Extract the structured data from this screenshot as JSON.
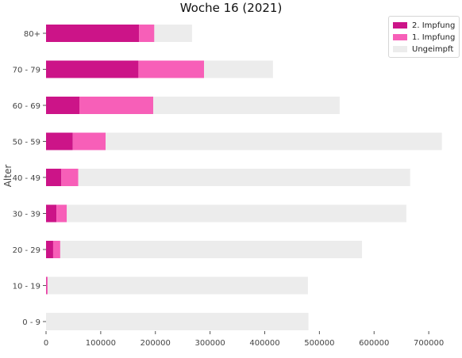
{
  "chart_data": {
    "type": "bar",
    "orientation": "horizontal",
    "stacked": true,
    "title": "Woche 16 (2021)",
    "ylabel": "Alter",
    "xlabel": "",
    "categories": [
      "80+",
      "70 - 79",
      "60 - 69",
      "50 - 59",
      "40 - 49",
      "30 - 39",
      "20 - 29",
      "10 - 19",
      "0 - 9"
    ],
    "series": [
      {
        "name": "2. Impfung",
        "color": "#cc1488",
        "values": [
          170000,
          169000,
          61000,
          49000,
          28000,
          19000,
          13000,
          1000,
          0
        ]
      },
      {
        "name": "1. Impfung",
        "color": "#f75fb8",
        "values": [
          28000,
          120000,
          135000,
          60000,
          31000,
          19000,
          13000,
          2000,
          0
        ]
      },
      {
        "name": "Ungeimpft",
        "color": "#ececec",
        "values": [
          69000,
          126000,
          341000,
          615000,
          607000,
          621000,
          552000,
          476000,
          480000
        ]
      }
    ],
    "xticks": [
      0,
      100000,
      200000,
      300000,
      400000,
      500000,
      600000,
      700000
    ],
    "xlim": [
      0,
      755000
    ],
    "grid": false,
    "legend_position": "top-right"
  }
}
